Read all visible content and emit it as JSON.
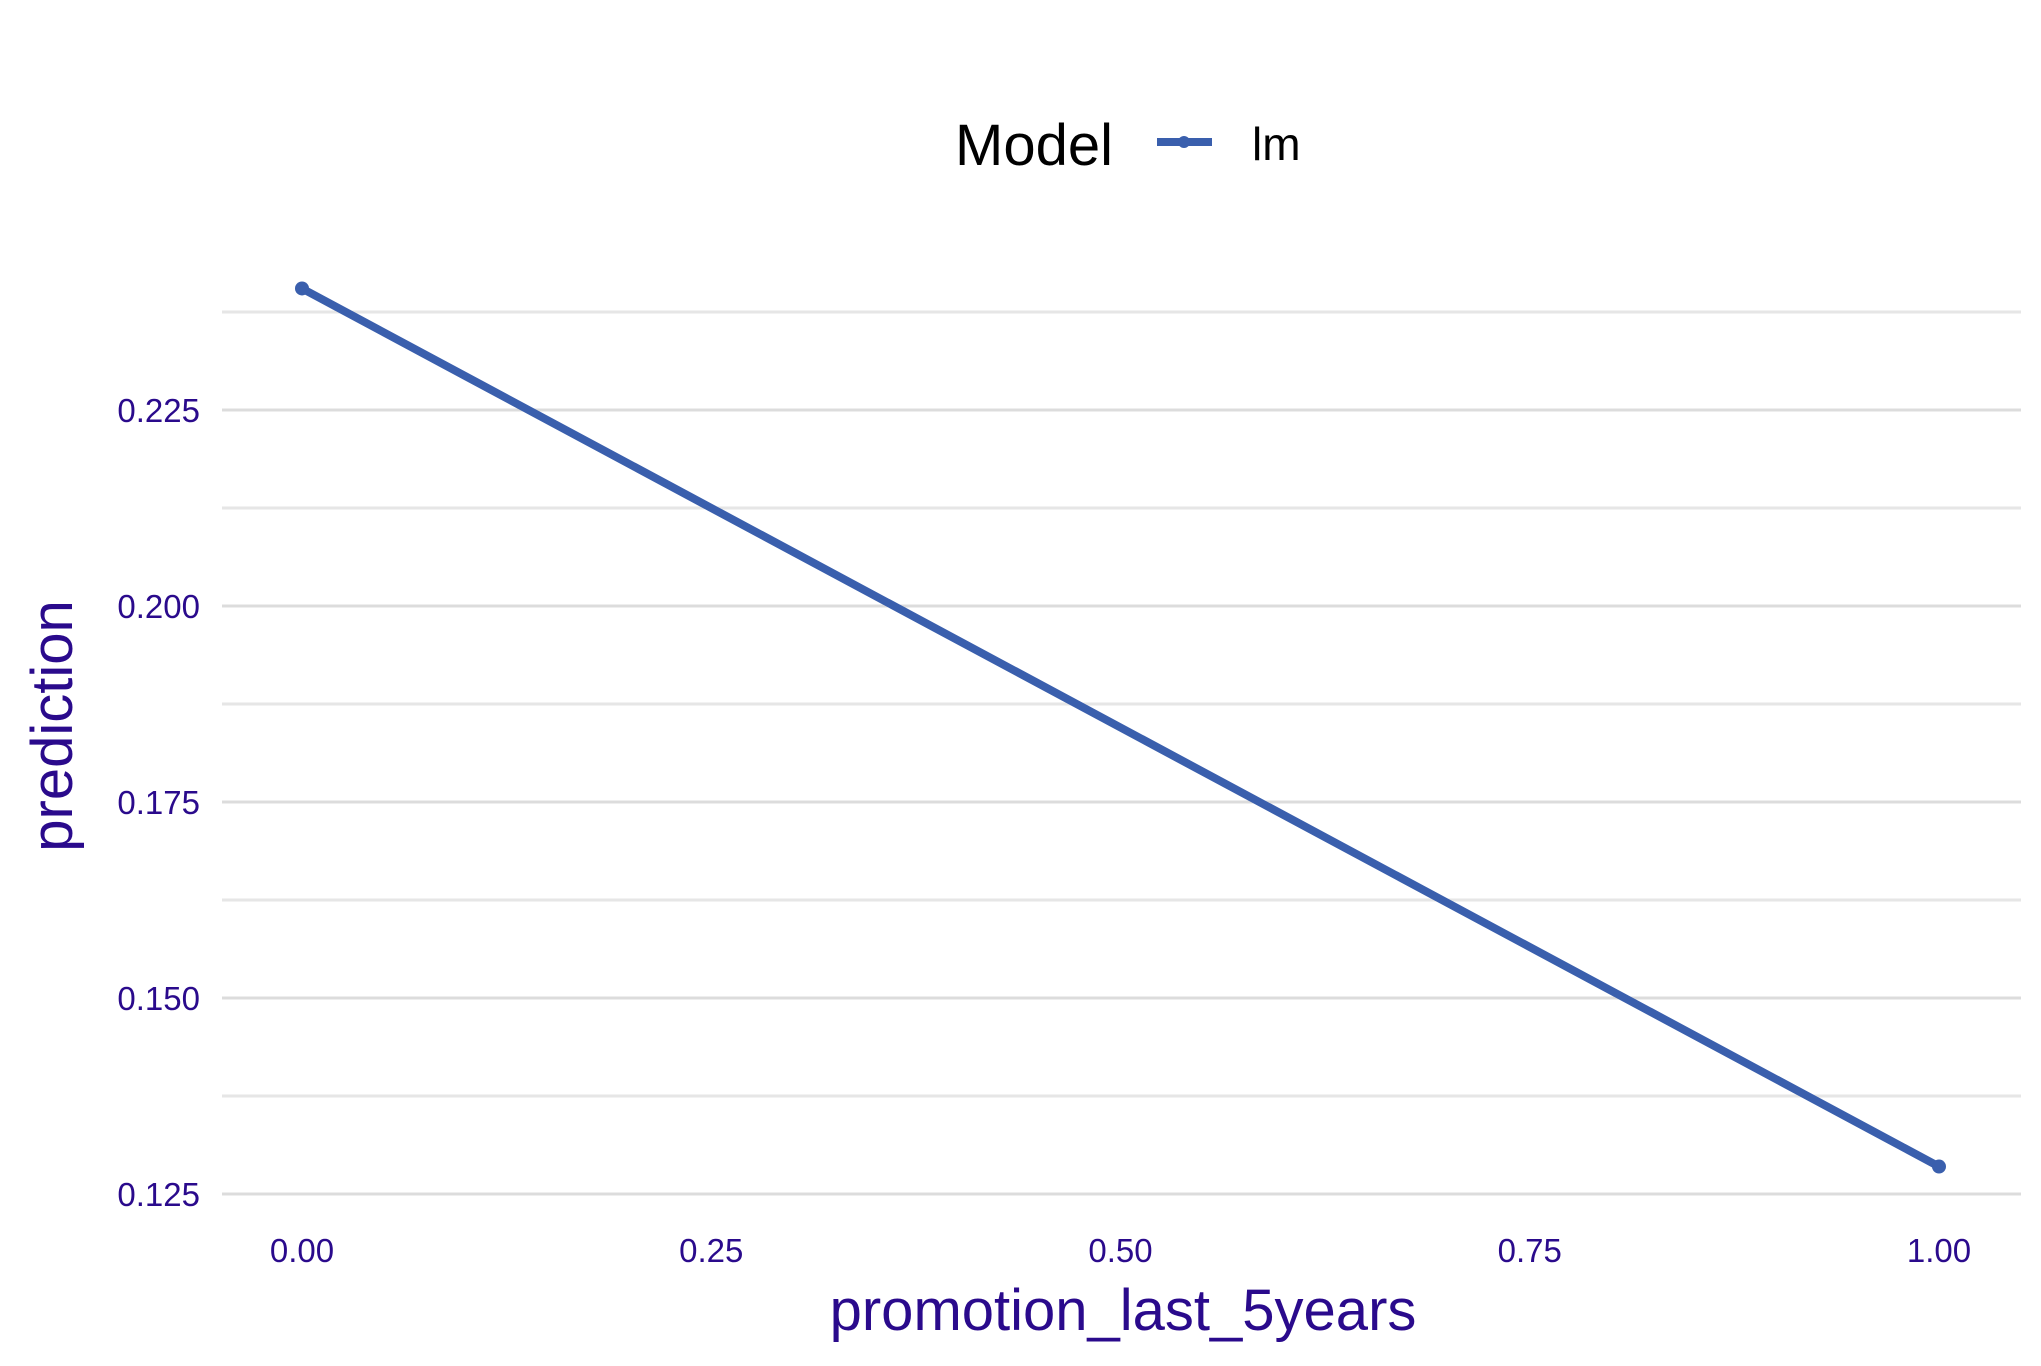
{
  "chart_data": {
    "type": "line",
    "xlabel": "promotion_last_5years",
    "ylabel": "prediction",
    "xlim": [
      -0.05,
      1.05
    ],
    "ylim": [
      0.125,
      0.2405
    ],
    "x_ticks": [
      "0.00",
      "0.25",
      "0.50",
      "0.75",
      "1.00"
    ],
    "y_ticks": [
      "0.125",
      "0.150",
      "0.175",
      "0.200",
      "0.225"
    ],
    "grid": true,
    "legend": {
      "title": "Model",
      "placement": "top-center",
      "entries": [
        "lm"
      ]
    },
    "series": [
      {
        "name": "lm",
        "color": "#3a5fad",
        "x": [
          0,
          1
        ],
        "y": [
          0.2405,
          0.1285
        ]
      }
    ]
  }
}
